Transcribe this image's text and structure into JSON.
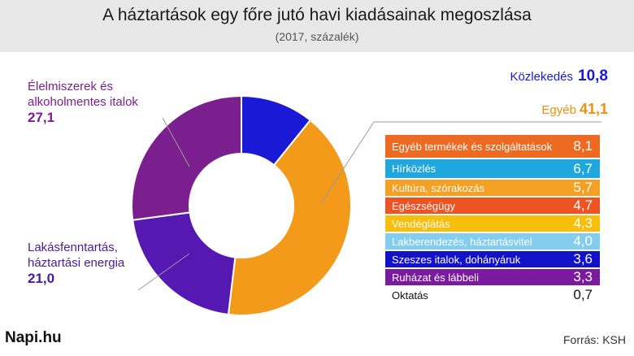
{
  "header": {
    "title": "A háztartások egy főre jutó havi kiadásainak megoszlása",
    "subtitle": "(2017, százalék)"
  },
  "chart_data": {
    "type": "pie",
    "title": "A háztartások egy főre jutó havi kiadásainak megoszlása",
    "subtitle": "(2017, százalék)",
    "slices": [
      {
        "label": "Közlekedés",
        "value": 10.8,
        "value_text": "10,8",
        "color": "#1a1ad6"
      },
      {
        "label": "Egyéb",
        "value": 41.1,
        "value_text": "41,1",
        "color": "#f39a1a"
      },
      {
        "label": "Lakásfenntartás, háztartási energia",
        "value": 21.0,
        "value_text": "21,0",
        "color": "#5518b0"
      },
      {
        "label": "Élelmiszerek és alkoholmentes italok",
        "value": 27.1,
        "value_text": "27,1",
        "color": "#7b1f8f"
      }
    ],
    "breakdown": [
      {
        "label": "Egyéb termékek és szolgáltatások",
        "value": 8.1,
        "value_text": "8,1",
        "color": "#ee6a23"
      },
      {
        "label": "Hírközlés",
        "value": 6.7,
        "value_text": "6,7",
        "color": "#1fa7de"
      },
      {
        "label": "Kultúra, szórakozás",
        "value": 5.7,
        "value_text": "5,7",
        "color": "#f3a023"
      },
      {
        "label": "Egészségügy",
        "value": 4.7,
        "value_text": "4,7",
        "color": "#ee5423"
      },
      {
        "label": "Vendéglátás",
        "value": 4.3,
        "value_text": "4,3",
        "color": "#f7bf0c"
      },
      {
        "label": "Lakberendezés, háztartásvitel",
        "value": 4.0,
        "value_text": "4,0",
        "color": "#83cdee"
      },
      {
        "label": "Szeszes italok, dohányáruk",
        "value": 3.6,
        "value_text": "3,6",
        "color": "#1212c8"
      },
      {
        "label": "Ruházat és lábbeli",
        "value": 3.3,
        "value_text": "3,3",
        "color": "#7a1a9e"
      },
      {
        "label": "Oktatás",
        "value": 0.7,
        "value_text": "0,7",
        "color": "#ffffff"
      }
    ]
  },
  "footer": {
    "logo": "Napi.hu",
    "source": "Forrás: KSH"
  }
}
